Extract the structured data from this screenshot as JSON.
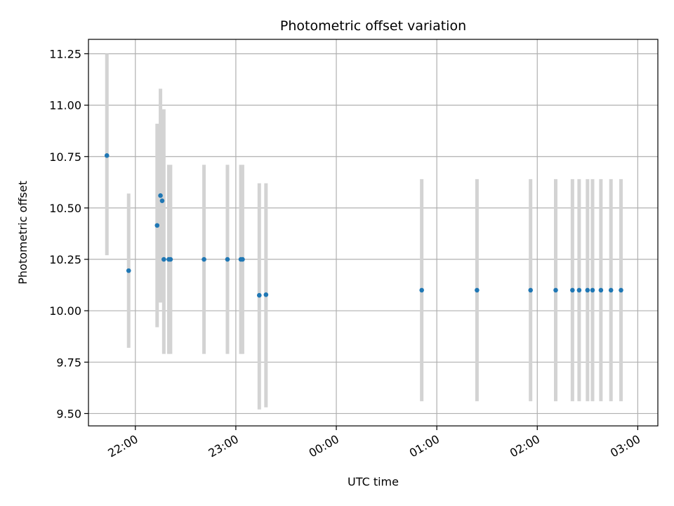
{
  "chart_data": {
    "type": "scatter",
    "title": "Photometric offset variation",
    "xlabel": "UTC time",
    "ylabel": "Photometric offset",
    "x_is_time": true,
    "xlim": [
      "21:32",
      "03:12"
    ],
    "ylim": [
      9.44,
      11.32
    ],
    "grid": true,
    "legend": "none",
    "colors": {
      "point": "#1f77b4",
      "errorbar": "#d3d3d3",
      "grid": "#b0b0b0",
      "axis": "#000000"
    },
    "x_ticks": [
      "22:00",
      "23:00",
      "00:00",
      "01:00",
      "02:00",
      "03:00"
    ],
    "y_ticks": [
      9.5,
      9.75,
      10.0,
      10.25,
      10.5,
      10.75,
      11.0,
      11.25
    ],
    "series": [
      {
        "points": [
          {
            "x": "21:43",
            "y": 10.755,
            "err_low": 10.27,
            "err_high": 11.25
          },
          {
            "x": "21:56",
            "y": 10.195,
            "err_low": 9.82,
            "err_high": 10.57
          },
          {
            "x": "22:13",
            "y": 10.415,
            "err_low": 9.92,
            "err_high": 10.91
          },
          {
            "x": "22:15",
            "y": 10.56,
            "err_low": 10.04,
            "err_high": 11.08
          },
          {
            "x": "22:16",
            "y": 10.535,
            "err_low": 10.05,
            "err_high": 10.98
          },
          {
            "x": "22:17",
            "y": 10.25,
            "err_low": 9.79,
            "err_high": 10.98
          },
          {
            "x": "22:20",
            "y": 10.25,
            "err_low": 9.79,
            "err_high": 10.71
          },
          {
            "x": "22:21",
            "y": 10.25,
            "err_low": 9.79,
            "err_high": 10.71
          },
          {
            "x": "22:41",
            "y": 10.25,
            "err_low": 9.79,
            "err_high": 10.71
          },
          {
            "x": "22:55",
            "y": 10.25,
            "err_low": 9.79,
            "err_high": 10.71
          },
          {
            "x": "23:03",
            "y": 10.25,
            "err_low": 9.79,
            "err_high": 10.71
          },
          {
            "x": "23:04",
            "y": 10.25,
            "err_low": 9.79,
            "err_high": 10.71
          },
          {
            "x": "23:14",
            "y": 10.075,
            "err_low": 9.52,
            "err_high": 10.62
          },
          {
            "x": "23:18",
            "y": 10.078,
            "err_low": 9.53,
            "err_high": 10.62
          },
          {
            "x": "00:51",
            "y": 10.1,
            "err_low": 9.56,
            "err_high": 10.64
          },
          {
            "x": "01:24",
            "y": 10.1,
            "err_low": 9.56,
            "err_high": 10.64
          },
          {
            "x": "01:56",
            "y": 10.1,
            "err_low": 9.56,
            "err_high": 10.64
          },
          {
            "x": "02:11",
            "y": 10.1,
            "err_low": 9.56,
            "err_high": 10.64
          },
          {
            "x": "02:21",
            "y": 10.1,
            "err_low": 9.56,
            "err_high": 10.64
          },
          {
            "x": "02:25",
            "y": 10.1,
            "err_low": 9.56,
            "err_high": 10.64
          },
          {
            "x": "02:30",
            "y": 10.1,
            "err_low": 9.56,
            "err_high": 10.64
          },
          {
            "x": "02:33",
            "y": 10.1,
            "err_low": 9.56,
            "err_high": 10.64
          },
          {
            "x": "02:38",
            "y": 10.1,
            "err_low": 9.56,
            "err_high": 10.64
          },
          {
            "x": "02:44",
            "y": 10.1,
            "err_low": 9.56,
            "err_high": 10.64
          },
          {
            "x": "02:50",
            "y": 10.1,
            "err_low": 9.56,
            "err_high": 10.64
          }
        ]
      }
    ]
  }
}
